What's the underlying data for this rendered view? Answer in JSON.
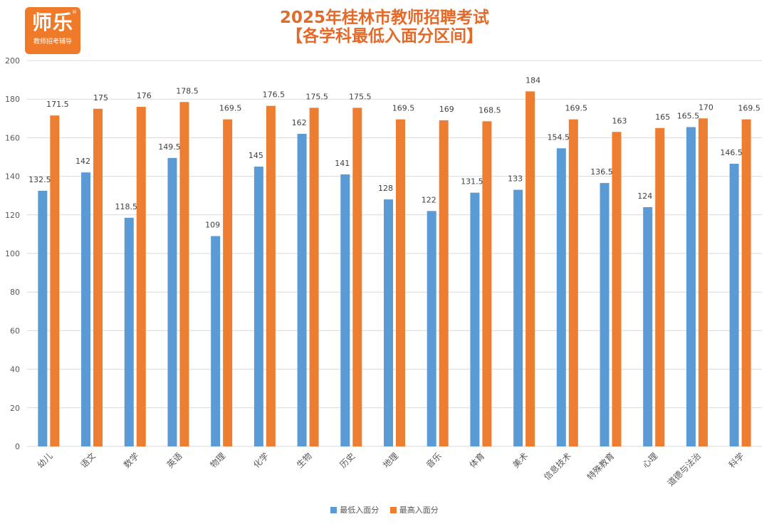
{
  "logo": {
    "main": "师乐",
    "sub": "教师招考辅导",
    "reg": "®"
  },
  "title_line1": "2025年桂林市教师招聘考试",
  "title_line2": "【各学科最低入面分区间】",
  "colors": {
    "min": "#5b9bd5",
    "max": "#ed7d31",
    "grid": "#d9d9d9",
    "axis_text": "#595959",
    "label_text": "#404040",
    "title": "#e46a2a"
  },
  "chart_data": {
    "type": "bar",
    "title": "2025年桂林市教师招聘考试【各学科最低入面分区间】",
    "xlabel": "",
    "ylabel": "",
    "ylim": [
      0,
      200
    ],
    "yticks": [
      0,
      20,
      40,
      60,
      80,
      100,
      120,
      140,
      160,
      180,
      200
    ],
    "grid": true,
    "legend_position": "bottom",
    "categories": [
      "幼儿",
      "语文",
      "数学",
      "英语",
      "物理",
      "化学",
      "生物",
      "历史",
      "地理",
      "音乐",
      "体育",
      "美术",
      "信息技术",
      "特殊教育",
      "心理",
      "道德与法治",
      "科学"
    ],
    "series": [
      {
        "name": "最低入面分",
        "values": [
          132.5,
          142,
          118.5,
          149.5,
          109,
          145,
          162,
          141,
          128,
          122,
          131.5,
          133,
          154.5,
          136.5,
          124,
          165.5,
          146.5
        ]
      },
      {
        "name": "最高入面分",
        "values": [
          171.5,
          175,
          176,
          178.5,
          169.5,
          176.5,
          175.5,
          175.5,
          169.5,
          169,
          168.5,
          184,
          169.5,
          163,
          165,
          170,
          169.5
        ]
      }
    ]
  }
}
